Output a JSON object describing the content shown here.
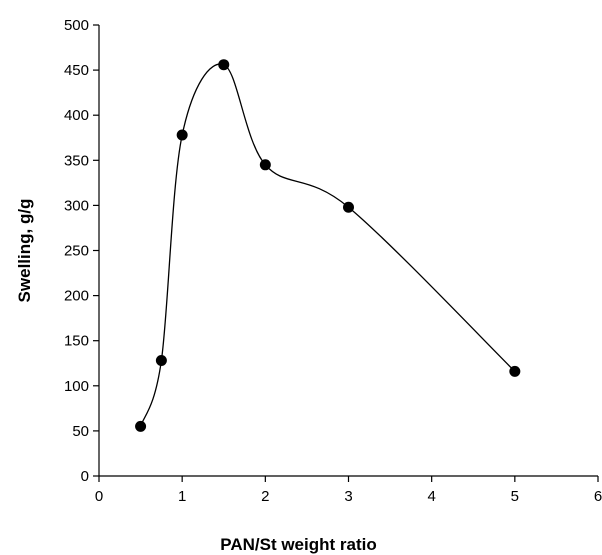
{
  "chart_data": {
    "type": "scatter",
    "title": "",
    "xlabel": "PAN/St weight ratio",
    "ylabel": "Swelling, g/g",
    "xlim": [
      0,
      6
    ],
    "ylim": [
      0,
      500
    ],
    "xticks": [
      0,
      1,
      2,
      3,
      4,
      5,
      6
    ],
    "yticks": [
      0,
      50,
      100,
      150,
      200,
      250,
      300,
      350,
      400,
      450,
      500
    ],
    "grid": false,
    "legend": "none",
    "line": "smoothed",
    "series": [
      {
        "x": [
          0.5,
          0.75,
          1.0,
          1.5,
          2.0,
          3.0,
          5.0
        ],
        "y": [
          55,
          128,
          378,
          456,
          345,
          298,
          116
        ]
      }
    ]
  }
}
